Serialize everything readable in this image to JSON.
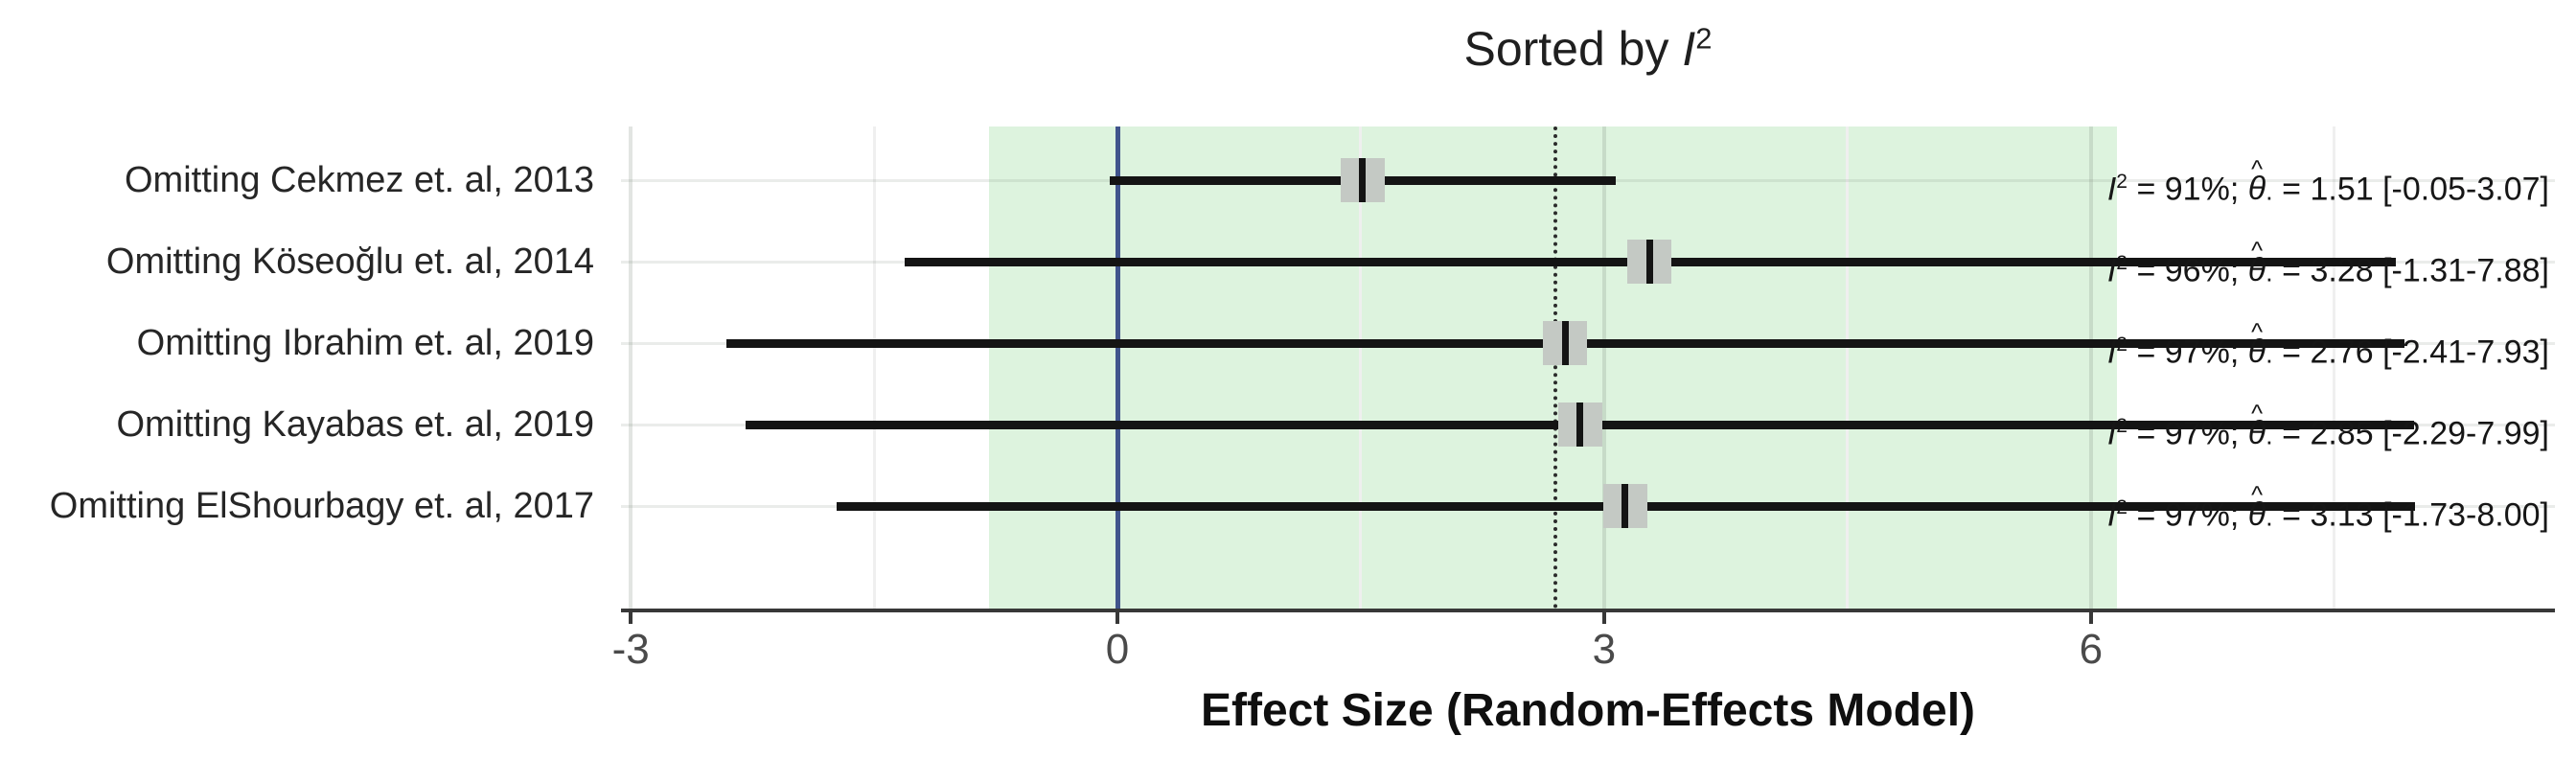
{
  "figure": {
    "title": {
      "prefix": "Sorted by ",
      "stat_symbol": "I",
      "stat_exponent": "2"
    },
    "x_axis": {
      "label": "Effect Size (Random-Effects Model)",
      "tick_labels": [
        "-3",
        "0",
        "3",
        "6"
      ],
      "tick_values": [
        -3,
        0,
        3,
        6
      ],
      "minor_tick_values": [
        -1.5,
        1.5,
        4.5,
        7.5
      ],
      "xlim": [
        -3.06,
        8.86
      ]
    },
    "annotation_format": {
      "stat_symbol": "I",
      "stat_exponent": "2",
      "equals": " = ",
      "separator": "; ",
      "theta": "θ",
      "hat": "^",
      "subscript_dot": ".",
      "space": " "
    },
    "colors": {
      "band": "#ddf3de",
      "reference_line": "#41548c",
      "overall_line": "#2b2b2b",
      "ci_line": "#141414",
      "marker_fill": "#c4c9c4",
      "marker_tick": "#141414",
      "axis": "#383838"
    }
  },
  "chart_data": {
    "type": "forest",
    "title": "Sorted by I2",
    "xlabel": "Effect Size (Random-Effects Model)",
    "xlim": [
      -3.06,
      8.86
    ],
    "x_ticks": [
      -3,
      0,
      3,
      6
    ],
    "reference_value": 0,
    "overall": {
      "estimate": 2.7,
      "ci_low": -0.79,
      "ci_high": 6.16
    },
    "rows": [
      {
        "label": "Omitting Cekmez et. al, 2013",
        "i2_text": "91%",
        "estimate": 1.51,
        "estimate_text": "1.51",
        "ci_low": -0.05,
        "ci_high": 3.07,
        "ci_text": "[-0.05-3.07]"
      },
      {
        "label": "Omitting Köseoğlu et. al, 2014",
        "i2_text": "96%",
        "estimate": 3.28,
        "estimate_text": "3.28",
        "ci_low": -1.31,
        "ci_high": 7.88,
        "ci_text": "[-1.31-7.88]"
      },
      {
        "label": "Omitting Ibrahim et. al, 2019",
        "i2_text": "97%",
        "estimate": 2.76,
        "estimate_text": "2.76",
        "ci_low": -2.41,
        "ci_high": 7.93,
        "ci_text": "[-2.41-7.93]"
      },
      {
        "label": "Omitting Kayabas et. al, 2019",
        "i2_text": "97%",
        "estimate": 2.85,
        "estimate_text": "2.85",
        "ci_low": -2.29,
        "ci_high": 7.99,
        "ci_text": "[-2.29-7.99]"
      },
      {
        "label": "Omitting ElShourbagy et. al, 2017",
        "i2_text": "97%",
        "estimate": 3.13,
        "estimate_text": "3.13",
        "ci_low": -1.73,
        "ci_high": 8.0,
        "ci_text": "[-1.73-8.00]"
      }
    ]
  }
}
